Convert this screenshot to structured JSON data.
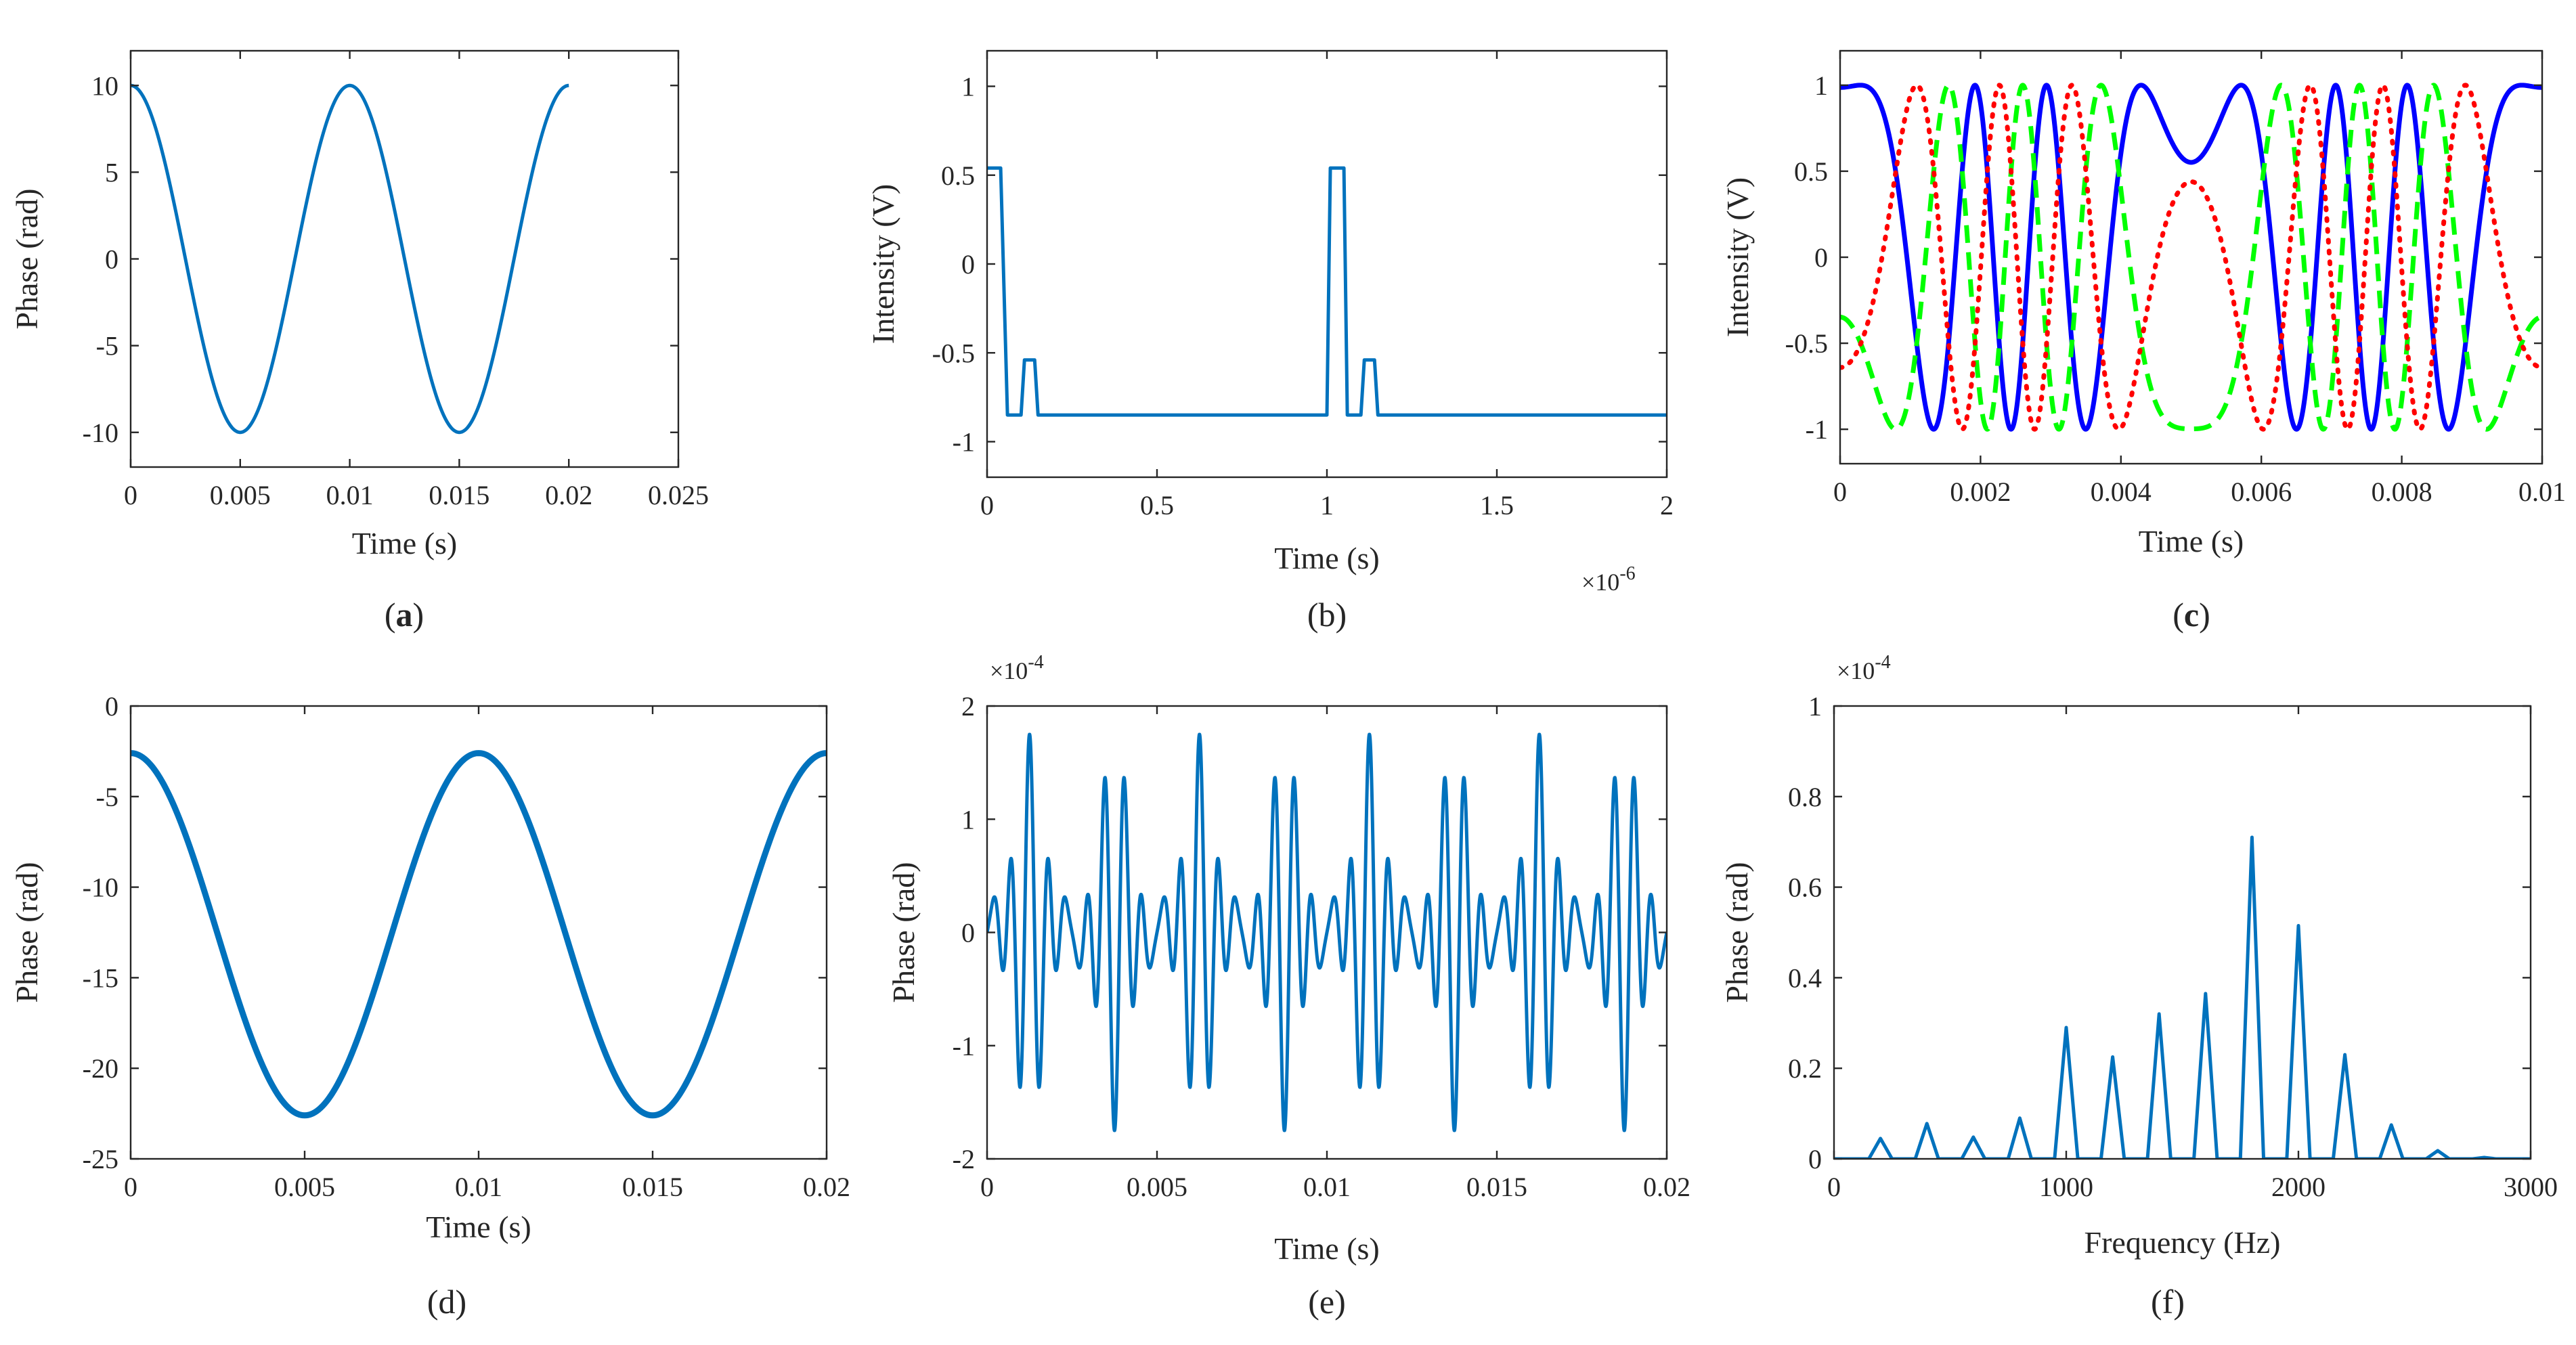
{
  "colors": {
    "matlab_blue": "#0072BD",
    "solid_blue": "#0000FF",
    "dashed_green": "#00FF00",
    "dotted_red": "#FF0000",
    "axis": "#262626"
  },
  "chart_data": [
    {
      "id": "a",
      "caption_letter": "a",
      "caption_bold": true,
      "type": "line",
      "xlabel": "Time (s)",
      "ylabel": "Phase (rad)",
      "xlim": [
        0,
        0.025
      ],
      "ylim": [
        -12,
        12
      ],
      "xticks": [
        0,
        0.005,
        0.01,
        0.015,
        0.02,
        0.025
      ],
      "xtick_labels": [
        "0",
        "0.005",
        "0.01",
        "0.015",
        "0.02",
        "0.025"
      ],
      "yticks": [
        -10,
        -5,
        0,
        5,
        10
      ],
      "ytick_labels": [
        "-10",
        "-5",
        "0",
        "5",
        "10"
      ],
      "series": [
        {
          "name": "phase",
          "color": "matlab_blue",
          "style": "solid",
          "formula": "10*cos(2*pi*100*t)",
          "t_range": [
            0,
            0.02
          ],
          "samples": 400
        }
      ]
    },
    {
      "id": "b",
      "caption_letter": "b",
      "caption_bold": false,
      "type": "line",
      "xlabel": "Time (s)",
      "ylabel": "Intensity (V)",
      "x_multiplier": "×10",
      "x_multiplier_exp": "-6",
      "xlim": [
        0,
        2
      ],
      "ylim": [
        -1.2,
        1.2
      ],
      "xticks": [
        0,
        0.5,
        1,
        1.5,
        2
      ],
      "xtick_labels": [
        "0",
        "0.5",
        "1",
        "1.5",
        "2"
      ],
      "yticks": [
        -1,
        -0.5,
        0,
        0.5,
        1
      ],
      "ytick_labels": [
        "-1",
        "-0.5",
        "0",
        "0.5",
        "1"
      ],
      "series": [
        {
          "name": "pulse train",
          "color": "matlab_blue",
          "style": "solid",
          "x": [
            0,
            0.04,
            0.06,
            2,
            2
          ],
          "points": [
            [
              0,
              0.54
            ],
            [
              0.04,
              0.54
            ],
            [
              0.06,
              -0.85
            ],
            [
              0.1,
              -0.85
            ],
            [
              0.11,
              -0.54
            ],
            [
              0.14,
              -0.54
            ],
            [
              0.15,
              -0.85
            ],
            [
              1.0,
              -0.85
            ],
            [
              1.01,
              0.54
            ],
            [
              1.05,
              0.54
            ],
            [
              1.06,
              -0.85
            ],
            [
              1.1,
              -0.85
            ],
            [
              1.11,
              -0.54
            ],
            [
              1.14,
              -0.54
            ],
            [
              1.15,
              -0.85
            ],
            [
              2.0,
              -0.85
            ]
          ]
        }
      ]
    },
    {
      "id": "c",
      "caption_letter": "c",
      "caption_bold": true,
      "type": "line",
      "xlabel": "Time (s)",
      "ylabel": "Intensity (V)",
      "xlim": [
        0,
        0.01
      ],
      "ylim": [
        -1.2,
        1.2
      ],
      "xticks": [
        0,
        0.002,
        0.004,
        0.006,
        0.008,
        0.01
      ],
      "xtick_labels": [
        "0",
        "0.002",
        "0.004",
        "0.006",
        "0.008",
        "0.01"
      ],
      "yticks": [
        -1,
        -0.5,
        0,
        0.5,
        1
      ],
      "ytick_labels": [
        "-1",
        "-0.5",
        "0",
        "0.5",
        "1"
      ],
      "series": [
        {
          "name": "solid",
          "color": "solid_blue",
          "style": "solid",
          "formula": "cos(10*cos(2*pi*100*t) + 2.73)",
          "t_range": [
            0,
            0.01
          ],
          "samples": 1200
        },
        {
          "name": "dashed",
          "color": "dashed_green",
          "style": "dashed",
          "formula": "cos(10*cos(2*pi*100*t) + 0.64)",
          "t_range": [
            0,
            0.01
          ],
          "samples": 1200
        },
        {
          "name": "dotted",
          "color": "dotted_red",
          "style": "dotted",
          "formula": "cos(10*cos(2*pi*100*t) - 1.45)",
          "t_range": [
            0,
            0.01
          ],
          "samples": 1200
        }
      ]
    },
    {
      "id": "d",
      "caption_letter": "d",
      "caption_bold": false,
      "type": "line",
      "xlabel": "Time (s)",
      "ylabel": "Phase (rad)",
      "xlim": [
        0,
        0.02
      ],
      "ylim": [
        -25,
        0
      ],
      "xticks": [
        0,
        0.005,
        0.01,
        0.015,
        0.02
      ],
      "xtick_labels": [
        "0",
        "0.005",
        "0.01",
        "0.015",
        "0.02"
      ],
      "yticks": [
        -25,
        -20,
        -15,
        -10,
        -5,
        0
      ],
      "ytick_labels": [
        "-25",
        "-20",
        "-15",
        "-10",
        "-5",
        "0"
      ],
      "series": [
        {
          "name": "phase",
          "color": "matlab_blue",
          "style": "solid",
          "thick": true,
          "formula": "-12.6 + 10*cos(2*pi*100*t)",
          "t_range": [
            0,
            0.02
          ],
          "samples": 400
        }
      ]
    },
    {
      "id": "e",
      "caption_letter": "e",
      "caption_bold": false,
      "type": "line",
      "xlabel": "Time (s)",
      "ylabel": "Phase (rad)",
      "y_multiplier": "×10",
      "y_multiplier_exp": "-4",
      "xlim": [
        0,
        0.02
      ],
      "ylim": [
        -2,
        2
      ],
      "xticks": [
        0,
        0.005,
        0.01,
        0.015,
        0.02
      ],
      "xtick_labels": [
        "0",
        "0.005",
        "0.01",
        "0.015",
        "0.02"
      ],
      "yticks": [
        -2,
        -1,
        0,
        1,
        2
      ],
      "ytick_labels": [
        "-2",
        "-1",
        "0",
        "1",
        "2"
      ],
      "series": [
        {
          "name": "phase residual",
          "color": "matlab_blue",
          "style": "solid",
          "formula": "1.5*sin(2*pi*200*t)^2 * sin(2*pi*1800*t) + 0.25*sin(2*pi*1000*t)",
          "t_range": [
            0,
            0.02
          ],
          "samples": 3000
        }
      ]
    },
    {
      "id": "f",
      "caption_letter": "f",
      "caption_bold": false,
      "type": "line",
      "xlabel": "Frequency (Hz)",
      "ylabel": "Phase (rad)",
      "y_multiplier": "×10",
      "y_multiplier_exp": "-4",
      "xlim": [
        0,
        3000
      ],
      "ylim": [
        0,
        1
      ],
      "xticks": [
        0,
        1000,
        2000,
        3000
      ],
      "xtick_labels": [
        "0",
        "1000",
        "2000",
        "3000"
      ],
      "yticks": [
        0,
        0.2,
        0.4,
        0.6,
        0.8,
        1
      ],
      "ytick_labels": [
        "0",
        "0.2",
        "0.4",
        "0.6",
        "0.8",
        "1"
      ],
      "series": [
        {
          "name": "spectrum",
          "color": "matlab_blue",
          "style": "solid",
          "peaks": [
            [
              200,
              0.045
            ],
            [
              400,
              0.078
            ],
            [
              600,
              0.048
            ],
            [
              800,
              0.09
            ],
            [
              1000,
              0.29
            ],
            [
              1200,
              0.225
            ],
            [
              1400,
              0.32
            ],
            [
              1600,
              0.365
            ],
            [
              1800,
              0.71
            ],
            [
              2000,
              0.515
            ],
            [
              2200,
              0.23
            ],
            [
              2400,
              0.075
            ],
            [
              2600,
              0.018
            ],
            [
              2800,
              0.003
            ]
          ],
          "peak_halfwidth": 50
        }
      ]
    }
  ]
}
